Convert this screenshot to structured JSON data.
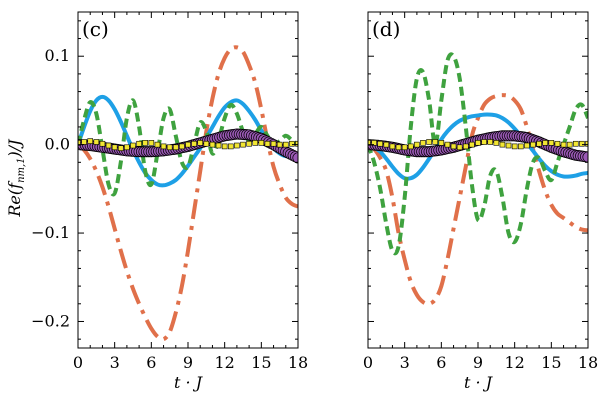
{
  "chart_data": [
    {
      "type": "line",
      "panel_label": "(c)",
      "xlabel": "t · J",
      "ylabel": "Re(f_nm,1)/J",
      "xlim": [
        0,
        18
      ],
      "ylim": [
        -0.23,
        0.15
      ],
      "x_ticks": [
        0,
        3,
        6,
        9,
        12,
        15,
        18
      ],
      "x_tick_labels": [
        "0",
        "3",
        "6",
        "9",
        "12",
        "15",
        "18"
      ],
      "y_ticks": [
        0.1,
        0.0,
        -0.1,
        -0.2
      ],
      "y_tick_labels": [
        "0.1",
        "0.0",
        "−0.1",
        "−0.2"
      ],
      "series": [
        {
          "name": "orange-dashdot",
          "style": "dashdot",
          "color": "#E0704A",
          "x": [
            0,
            0.5,
            1,
            1.5,
            2,
            2.5,
            3,
            3.5,
            4,
            4.5,
            5,
            5.5,
            6,
            6.5,
            7,
            7.5,
            8,
            8.5,
            9,
            9.5,
            10,
            10.5,
            11,
            11.5,
            12,
            12.5,
            13,
            13.5,
            14,
            14.5,
            15,
            15.5,
            16,
            16.5,
            17,
            17.5,
            18
          ],
          "y": [
            0,
            -0.006,
            -0.016,
            -0.03,
            -0.048,
            -0.07,
            -0.095,
            -0.12,
            -0.143,
            -0.163,
            -0.18,
            -0.195,
            -0.208,
            -0.217,
            -0.22,
            -0.212,
            -0.19,
            -0.16,
            -0.12,
            -0.075,
            -0.03,
            0.015,
            0.052,
            0.08,
            0.098,
            0.108,
            0.11,
            0.105,
            0.09,
            0.07,
            0.04,
            0.005,
            -0.025,
            -0.045,
            -0.06,
            -0.067,
            -0.07
          ]
        },
        {
          "name": "blue-solid",
          "style": "solid",
          "color": "#1EA0E6",
          "x": [
            0,
            0.5,
            1,
            1.5,
            2,
            2.5,
            3,
            3.5,
            4,
            4.5,
            5,
            5.5,
            6,
            6.5,
            7,
            7.5,
            8,
            8.5,
            9,
            9.5,
            10,
            10.5,
            11,
            11.5,
            12,
            12.5,
            13,
            13.5,
            14,
            14.5,
            15,
            15.5,
            16,
            16.5,
            17,
            17.5,
            18
          ],
          "y": [
            0,
            0.02,
            0.038,
            0.05,
            0.054,
            0.05,
            0.04,
            0.026,
            0.01,
            -0.006,
            -0.02,
            -0.032,
            -0.04,
            -0.045,
            -0.046,
            -0.044,
            -0.04,
            -0.033,
            -0.024,
            -0.014,
            -0.004,
            0.008,
            0.02,
            0.032,
            0.042,
            0.048,
            0.05,
            0.046,
            0.038,
            0.028,
            0.016,
            0.005,
            -0.004,
            -0.01,
            -0.013,
            -0.012,
            -0.01
          ]
        },
        {
          "name": "green-dashed",
          "style": "dashed",
          "color": "#3FA23F",
          "x": [
            0,
            0.5,
            1,
            1.5,
            2,
            2.5,
            3,
            3.5,
            4,
            4.5,
            5,
            5.5,
            6,
            6.5,
            7,
            7.5,
            8,
            8.5,
            9,
            9.5,
            10,
            10.5,
            11,
            11.5,
            12,
            12.5,
            13,
            13.5,
            14,
            14.5,
            15,
            15.5,
            16,
            16.5,
            17,
            17.5,
            18
          ],
          "y": [
            0,
            0.028,
            0.048,
            0.035,
            -0.005,
            -0.045,
            -0.055,
            -0.02,
            0.03,
            0.05,
            0.02,
            -0.03,
            -0.045,
            -0.01,
            0.03,
            0.04,
            0.01,
            -0.02,
            -0.025,
            0.0,
            0.025,
            0.015,
            -0.01,
            0.005,
            0.03,
            0.045,
            0.035,
            0.015,
            0.005,
            0.012,
            0.02,
            0.01,
            0.0,
            0.004,
            0.01,
            0.005,
            0.0
          ]
        },
        {
          "name": "purple-circles",
          "style": "markers",
          "color": "#9B59B6",
          "x": [
            0,
            1,
            2,
            3,
            4,
            5,
            6,
            7,
            8,
            9,
            10,
            11,
            12,
            13,
            14,
            15,
            16,
            17,
            18
          ],
          "y": [
            0,
            -0.001,
            -0.003,
            -0.005,
            -0.007,
            -0.008,
            -0.008,
            -0.007,
            -0.005,
            -0.002,
            0.002,
            0.006,
            0.01,
            0.012,
            0.011,
            0.007,
            0.0,
            -0.008,
            -0.015
          ]
        },
        {
          "name": "yellow-squares",
          "style": "markers",
          "color": "#F2E633",
          "x": [
            0,
            0.5,
            1,
            1.5,
            2,
            2.5,
            3,
            3.5,
            4,
            4.5,
            5,
            5.5,
            6,
            6.5,
            7,
            7.5,
            8,
            8.5,
            9,
            9.5,
            10,
            10.5,
            11,
            11.5,
            12,
            12.5,
            13,
            13.5,
            14,
            14.5,
            15,
            15.5,
            16,
            16.5,
            17,
            17.5,
            18
          ],
          "y": [
            0.002,
            0.003,
            0.004,
            0.003,
            0.001,
            -0.001,
            -0.003,
            -0.004,
            -0.003,
            -0.001,
            0.001,
            0.002,
            0.002,
            0.0,
            -0.002,
            -0.003,
            -0.003,
            -0.002,
            0.0,
            0.001,
            0.002,
            0.001,
            0.0,
            -0.001,
            -0.002,
            -0.002,
            -0.001,
            0.0,
            0.001,
            0.002,
            0.002,
            0.001,
            0.001,
            0.0,
            0.0,
            0.001,
            0.001
          ]
        }
      ]
    },
    {
      "type": "line",
      "panel_label": "(d)",
      "xlabel": "t · J",
      "ylabel": "",
      "xlim": [
        0,
        18
      ],
      "ylim": [
        -0.23,
        0.15
      ],
      "x_ticks": [
        0,
        3,
        6,
        9,
        12,
        15,
        18
      ],
      "x_tick_labels": [
        "0",
        "3",
        "6",
        "9",
        "12",
        "15",
        "18"
      ],
      "y_ticks": [
        0.1,
        0.0,
        -0.1,
        -0.2
      ],
      "y_tick_labels": [],
      "series": [
        {
          "name": "orange-dashdot",
          "style": "dashdot",
          "color": "#E0704A",
          "x": [
            0,
            0.5,
            1,
            1.5,
            2,
            2.5,
            3,
            3.5,
            4,
            4.5,
            5,
            5.5,
            6,
            6.5,
            7,
            7.5,
            8,
            8.5,
            9,
            9.5,
            10,
            10.5,
            11,
            11.5,
            12,
            12.5,
            13,
            13.5,
            14,
            14.5,
            15,
            15.5,
            16,
            16.5,
            17,
            17.5,
            18
          ],
          "y": [
            0,
            -0.005,
            -0.015,
            -0.03,
            -0.06,
            -0.1,
            -0.13,
            -0.155,
            -0.17,
            -0.178,
            -0.18,
            -0.175,
            -0.16,
            -0.13,
            -0.095,
            -0.06,
            -0.025,
            0.01,
            0.03,
            0.045,
            0.052,
            0.055,
            0.056,
            0.055,
            0.05,
            0.04,
            0.02,
            -0.005,
            -0.03,
            -0.052,
            -0.068,
            -0.078,
            -0.083,
            -0.088,
            -0.093,
            -0.096,
            -0.097
          ]
        },
        {
          "name": "blue-solid",
          "style": "solid",
          "color": "#1EA0E6",
          "x": [
            0,
            0.5,
            1,
            1.5,
            2,
            2.5,
            3,
            3.5,
            4,
            4.5,
            5,
            5.5,
            6,
            6.5,
            7,
            7.5,
            8,
            8.5,
            9,
            9.5,
            10,
            10.5,
            11,
            11.5,
            12,
            12.5,
            13,
            13.5,
            14,
            14.5,
            15,
            15.5,
            16,
            16.5,
            17,
            17.5,
            18
          ],
          "y": [
            0,
            -0.003,
            -0.008,
            -0.016,
            -0.025,
            -0.033,
            -0.038,
            -0.038,
            -0.034,
            -0.026,
            -0.016,
            -0.005,
            0.006,
            0.015,
            0.022,
            0.027,
            0.03,
            0.032,
            0.033,
            0.034,
            0.034,
            0.033,
            0.03,
            0.025,
            0.018,
            0.01,
            0.002,
            -0.007,
            -0.016,
            -0.024,
            -0.03,
            -0.034,
            -0.036,
            -0.036,
            -0.035,
            -0.033,
            -0.032
          ]
        },
        {
          "name": "green-dashed",
          "style": "dashed",
          "color": "#3FA23F",
          "x": [
            0,
            0.5,
            1,
            1.5,
            2,
            2.5,
            3,
            3.5,
            4,
            4.5,
            5,
            5.5,
            6,
            6.5,
            7,
            7.5,
            8,
            8.5,
            9,
            9.5,
            10,
            10.5,
            11,
            11.5,
            12,
            12.5,
            13,
            13.5,
            14,
            14.5,
            15,
            15.5,
            16,
            16.5,
            17,
            17.5,
            18
          ],
          "y": [
            0,
            -0.02,
            -0.05,
            -0.09,
            -0.12,
            -0.115,
            -0.06,
            0.02,
            0.075,
            0.082,
            0.05,
            0.0,
            0.05,
            0.095,
            0.1,
            0.075,
            0.02,
            -0.045,
            -0.085,
            -0.07,
            -0.035,
            -0.03,
            -0.06,
            -0.1,
            -0.11,
            -0.09,
            -0.05,
            -0.02,
            -0.015,
            -0.03,
            -0.04,
            -0.02,
            0.0,
            0.02,
            0.04,
            0.045,
            0.03
          ]
        },
        {
          "name": "purple-circles",
          "style": "markers",
          "color": "#9B59B6",
          "x": [
            0,
            1,
            2,
            3,
            4,
            5,
            6,
            7,
            8,
            9,
            10,
            11,
            12,
            13,
            14,
            15,
            16,
            17,
            18
          ],
          "y": [
            0,
            -0.001,
            -0.003,
            -0.006,
            -0.008,
            -0.008,
            -0.006,
            -0.003,
            0.001,
            0.005,
            0.008,
            0.01,
            0.01,
            0.008,
            0.003,
            -0.003,
            -0.008,
            -0.012,
            -0.014
          ]
        },
        {
          "name": "yellow-squares",
          "style": "markers",
          "color": "#F2E633",
          "x": [
            0,
            0.5,
            1,
            1.5,
            2,
            2.5,
            3,
            3.5,
            4,
            4.5,
            5,
            5.5,
            6,
            6.5,
            7,
            7.5,
            8,
            8.5,
            9,
            9.5,
            10,
            10.5,
            11,
            11.5,
            12,
            12.5,
            13,
            13.5,
            14,
            14.5,
            15,
            15.5,
            16,
            16.5,
            17,
            17.5,
            18
          ],
          "y": [
            0.002,
            0.002,
            0.001,
            0.0,
            -0.002,
            -0.003,
            -0.003,
            -0.002,
            0.0,
            0.002,
            0.003,
            0.003,
            0.002,
            0.0,
            -0.002,
            -0.003,
            -0.002,
            0.0,
            0.002,
            0.003,
            0.003,
            0.002,
            0.0,
            -0.001,
            -0.002,
            -0.002,
            -0.001,
            0.0,
            0.001,
            0.002,
            0.002,
            0.001,
            0.0,
            0.0,
            0.001,
            0.001,
            0.001
          ]
        }
      ]
    }
  ]
}
